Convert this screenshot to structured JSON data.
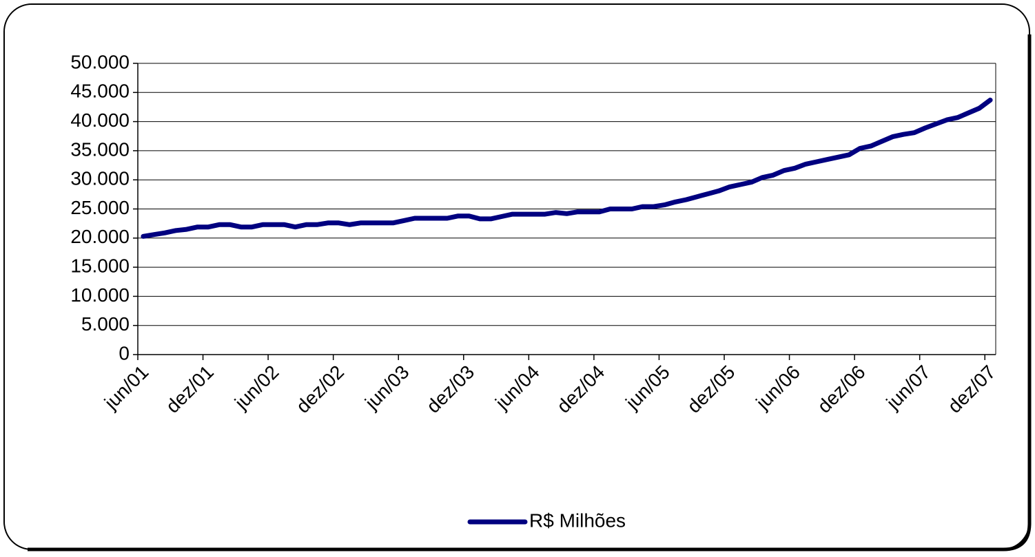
{
  "chart_data": {
    "type": "line",
    "categories": [
      "jun/01",
      null,
      null,
      null,
      null,
      null,
      "dez/01",
      null,
      null,
      null,
      null,
      null,
      "jun/02",
      null,
      null,
      null,
      null,
      null,
      "dez/02",
      null,
      null,
      null,
      null,
      null,
      "jun/03",
      null,
      null,
      null,
      null,
      null,
      "dez/03",
      null,
      null,
      null,
      null,
      null,
      "jun/04",
      null,
      null,
      null,
      null,
      null,
      "dez/04",
      null,
      null,
      null,
      null,
      null,
      "jun/05",
      null,
      null,
      null,
      null,
      null,
      "dez/05",
      null,
      null,
      null,
      null,
      null,
      "jun/06",
      null,
      null,
      null,
      null,
      null,
      "dez/06",
      null,
      null,
      null,
      null,
      null,
      "jun/07",
      null,
      null,
      null,
      null,
      null,
      "dez/07"
    ],
    "series": [
      {
        "name": "R$ Milhões",
        "color": "#000080",
        "values": [
          20300,
          20600,
          20900,
          21300,
          21500,
          21900,
          21900,
          22300,
          22300,
          21900,
          21900,
          22300,
          22300,
          22300,
          21900,
          22300,
          22300,
          22600,
          22600,
          22300,
          22600,
          22600,
          22600,
          22600,
          23000,
          23400,
          23400,
          23400,
          23400,
          23800,
          23800,
          23300,
          23300,
          23700,
          24100,
          24100,
          24100,
          24100,
          24400,
          24200,
          24500,
          24500,
          24500,
          25000,
          25000,
          25000,
          25400,
          25400,
          25700,
          26200,
          26600,
          27100,
          27600,
          28100,
          28800,
          29200,
          29600,
          30400,
          30800,
          31600,
          32000,
          32700,
          33100,
          33500,
          33900,
          34300,
          35400,
          35800,
          36600,
          37400,
          37800,
          38100,
          38900,
          39600,
          40300,
          40700,
          41500,
          42300,
          43700
        ]
      }
    ],
    "ylim": [
      0,
      50000
    ],
    "yticks": [
      0,
      {
        "value": 5000,
        "label": "5.000"
      },
      {
        "value": 10000,
        "label": "10.000"
      },
      {
        "value": 15000,
        "label": "15.000"
      },
      {
        "value": 20000,
        "label": "20.000"
      },
      {
        "value": 25000,
        "label": "25.000"
      },
      {
        "value": 30000,
        "label": "30.000"
      },
      {
        "value": 35000,
        "label": "35.000"
      },
      {
        "value": 40000,
        "label": "40.000"
      },
      {
        "value": 45000,
        "label": "45.000"
      },
      {
        "value": 50000,
        "label": "50.000"
      }
    ],
    "grid": true,
    "legend": "bottom"
  }
}
